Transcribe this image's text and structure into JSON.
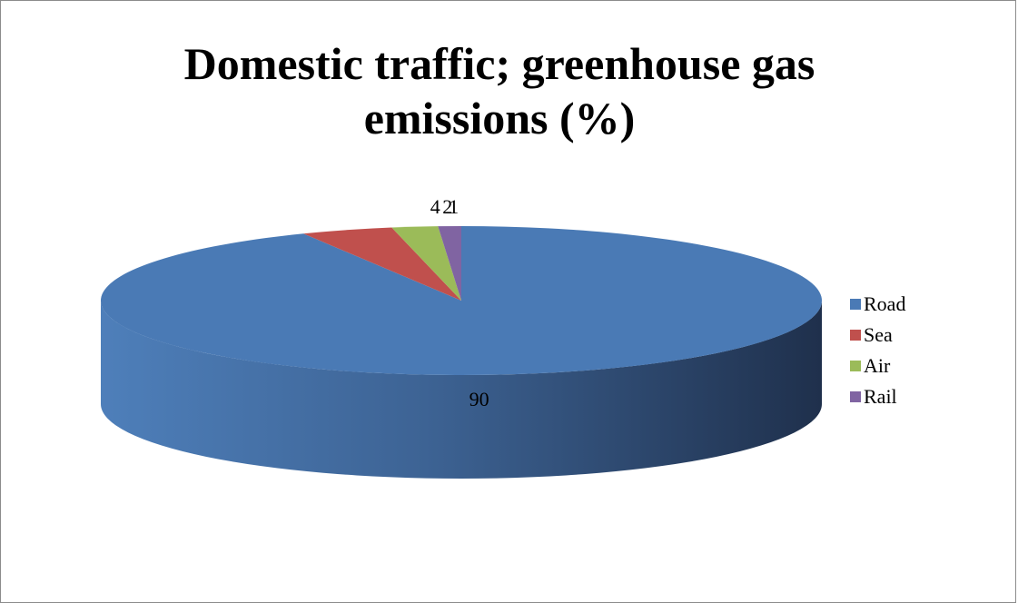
{
  "chart_data": {
    "type": "pie",
    "title": "Domestic traffic; greenhouse gas emissions (%)",
    "categories": [
      "Road",
      "Sea",
      "Air",
      "Rail"
    ],
    "values": [
      90,
      4,
      2,
      1
    ],
    "data_labels": [
      "90",
      "4",
      "2",
      "1"
    ],
    "colors": [
      "#4a7ab5",
      "#c0504d",
      "#9bbb59",
      "#8064a2"
    ],
    "legend_position": "right",
    "style": "3d"
  }
}
